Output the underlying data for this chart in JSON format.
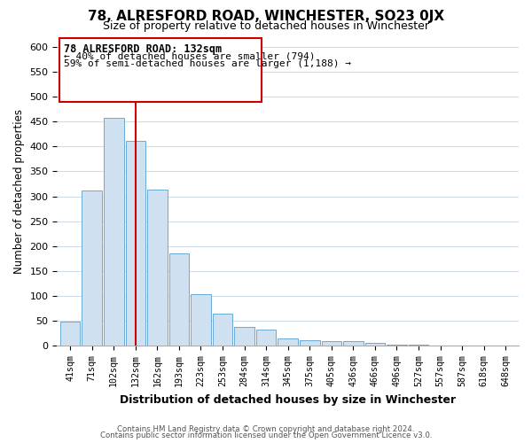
{
  "title": "78, ALRESFORD ROAD, WINCHESTER, SO23 0JX",
  "subtitle": "Size of property relative to detached houses in Winchester",
  "xlabel": "Distribution of detached houses by size in Winchester",
  "ylabel": "Number of detached properties",
  "bar_color": "#cfe0f0",
  "bar_edge_color": "#6aaad4",
  "background_color": "#ffffff",
  "grid_color": "#d0dce8",
  "annotation_box_edge": "#cc0000",
  "annotation_line_color": "#cc0000",
  "annotation_title": "78 ALRESFORD ROAD: 132sqm",
  "annotation_line1": "← 40% of detached houses are smaller (794)",
  "annotation_line2": "59% of semi-detached houses are larger (1,188) →",
  "footer_line1": "Contains HM Land Registry data © Crown copyright and database right 2024.",
  "footer_line2": "Contains public sector information licensed under the Open Government Licence v3.0.",
  "categories": [
    "41sqm",
    "71sqm",
    "102sqm",
    "132sqm",
    "162sqm",
    "193sqm",
    "223sqm",
    "253sqm",
    "284sqm",
    "314sqm",
    "345sqm",
    "375sqm",
    "405sqm",
    "436sqm",
    "466sqm",
    "496sqm",
    "527sqm",
    "557sqm",
    "587sqm",
    "618sqm",
    "648sqm"
  ],
  "values": [
    48,
    311,
    458,
    412,
    314,
    186,
    104,
    64,
    38,
    32,
    15,
    11,
    10,
    9,
    6,
    3,
    2,
    1,
    0,
    0,
    1
  ],
  "marker_index": 3,
  "ylim": [
    0,
    620
  ],
  "yticks": [
    0,
    50,
    100,
    150,
    200,
    250,
    300,
    350,
    400,
    450,
    500,
    550,
    600
  ]
}
